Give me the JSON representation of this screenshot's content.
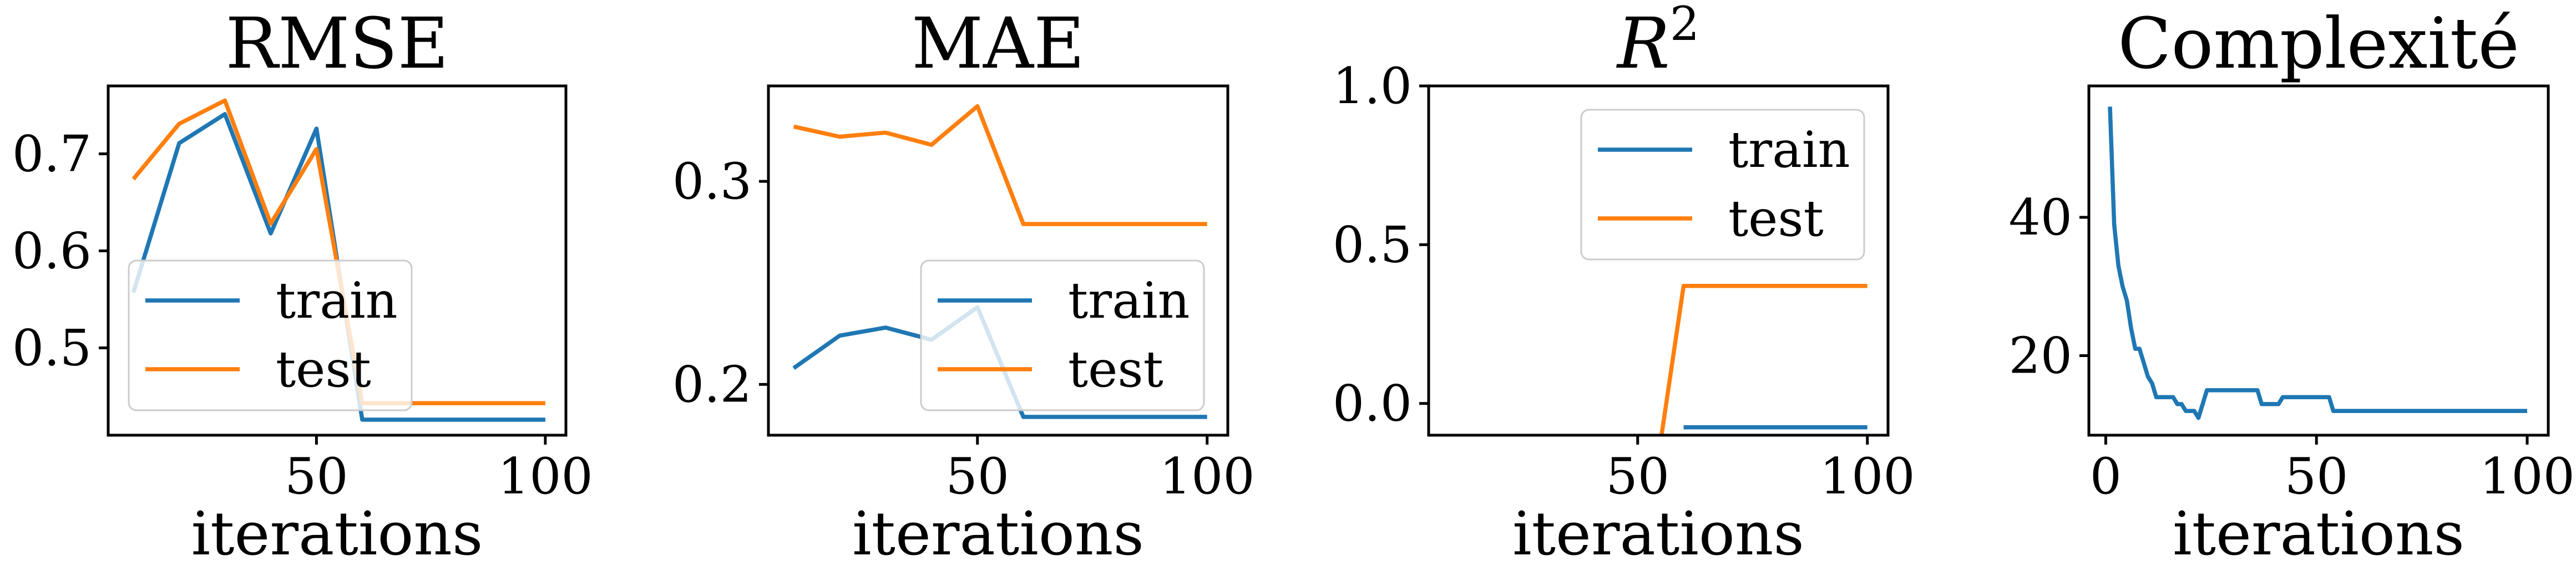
{
  "colors": {
    "train": "#1f77b4",
    "test": "#ff7f0e"
  },
  "chart_data": [
    {
      "type": "line",
      "title": "RMSE",
      "xlabel": "iterations",
      "xlim": [
        4.5,
        104.5
      ],
      "ylim": [
        0.41,
        0.77
      ],
      "xticks": [
        50,
        100
      ],
      "xtick_labels": [
        "50",
        "100"
      ],
      "yticks": [
        0.5,
        0.6,
        0.7
      ],
      "ytick_labels": [
        "0.5",
        "0.6",
        "0.7"
      ],
      "legend": "lower-left",
      "series": [
        {
          "name": "train",
          "color": "#1f77b4",
          "x": [
            10,
            20,
            30,
            40,
            50,
            60,
            70,
            80,
            90,
            100
          ],
          "y": [
            0.557,
            0.711,
            0.741,
            0.618,
            0.726,
            0.426,
            0.426,
            0.426,
            0.426,
            0.426
          ]
        },
        {
          "name": "test",
          "color": "#ff7f0e",
          "x": [
            10,
            20,
            30,
            40,
            50,
            60,
            70,
            80,
            90,
            100
          ],
          "y": [
            0.674,
            0.731,
            0.755,
            0.628,
            0.705,
            0.443,
            0.443,
            0.443,
            0.443,
            0.443
          ]
        }
      ]
    },
    {
      "type": "line",
      "title": "MAE",
      "xlabel": "iterations",
      "xlim": [
        4.5,
        104.5
      ],
      "ylim": [
        0.175,
        0.347
      ],
      "xticks": [
        50,
        100
      ],
      "xtick_labels": [
        "50",
        "100"
      ],
      "yticks": [
        0.2,
        0.3
      ],
      "ytick_labels": [
        "0.2",
        "0.3"
      ],
      "legend": "lower-right",
      "series": [
        {
          "name": "train",
          "color": "#1f77b4",
          "x": [
            10,
            20,
            30,
            40,
            50,
            60,
            70,
            80,
            90,
            100
          ],
          "y": [
            0.208,
            0.224,
            0.228,
            0.222,
            0.238,
            0.184,
            0.184,
            0.184,
            0.184,
            0.184
          ]
        },
        {
          "name": "test",
          "color": "#ff7f0e",
          "x": [
            10,
            20,
            30,
            40,
            50,
            60,
            70,
            80,
            90,
            100
          ],
          "y": [
            0.327,
            0.322,
            0.324,
            0.318,
            0.337,
            0.279,
            0.279,
            0.279,
            0.279,
            0.279
          ]
        }
      ]
    },
    {
      "type": "line",
      "title": "R",
      "title_superscript": "2",
      "xlabel": "iterations",
      "xlim": [
        4.5,
        104.5
      ],
      "ylim": [
        -0.1,
        1.0
      ],
      "xticks": [
        50,
        100
      ],
      "xtick_labels": [
        "50",
        "100"
      ],
      "yticks": [
        0.0,
        0.5,
        1.0
      ],
      "ytick_labels": [
        "0.0",
        "0.5",
        "1.0"
      ],
      "legend": "upper-right",
      "series": [
        {
          "name": "train",
          "color": "#1f77b4",
          "x": [
            60,
            70,
            80,
            90,
            100
          ],
          "y": [
            -0.075,
            -0.075,
            -0.075,
            -0.075,
            -0.075
          ]
        },
        {
          "name": "test",
          "color": "#ff7f0e",
          "x": [
            55,
            60,
            70,
            80,
            90,
            100
          ],
          "y": [
            -0.12,
            0.37,
            0.37,
            0.37,
            0.37,
            0.37
          ]
        }
      ]
    },
    {
      "type": "line",
      "title": "Complexité",
      "xlabel": "iterations",
      "xlim": [
        -4,
        105
      ],
      "ylim": [
        8.5,
        59
      ],
      "xticks": [
        0,
        50,
        100
      ],
      "xtick_labels": [
        "0",
        "50",
        "100"
      ],
      "yticks": [
        20,
        40
      ],
      "ytick_labels": [
        "20",
        "40"
      ],
      "legend": "none",
      "series": [
        {
          "color": "#1f77b4",
          "x": [
            1,
            2,
            3,
            4,
            5,
            6,
            7,
            8,
            9,
            10,
            11,
            12,
            13,
            14,
            15,
            16,
            17,
            18,
            19,
            20,
            21,
            22,
            23,
            24,
            25,
            26,
            27,
            28,
            29,
            30,
            31,
            32,
            33,
            34,
            35,
            36,
            37,
            38,
            39,
            40,
            41,
            42,
            43,
            44,
            45,
            46,
            47,
            48,
            49,
            50,
            51,
            52,
            53,
            54,
            55,
            60,
            70,
            80,
            90,
            100
          ],
          "y": [
            56,
            39,
            33,
            30,
            28,
            24,
            21,
            21,
            19,
            17,
            16,
            14,
            14,
            14,
            14,
            14,
            13,
            13,
            12,
            12,
            12,
            11,
            13,
            15,
            15,
            15,
            15,
            15,
            15,
            15,
            15,
            15,
            15,
            15,
            15,
            15,
            13,
            13,
            13,
            13,
            13,
            14,
            14,
            14,
            14,
            14,
            14,
            14,
            14,
            14,
            14,
            14,
            14,
            12,
            12,
            12,
            12,
            12,
            12,
            12
          ]
        }
      ]
    }
  ]
}
